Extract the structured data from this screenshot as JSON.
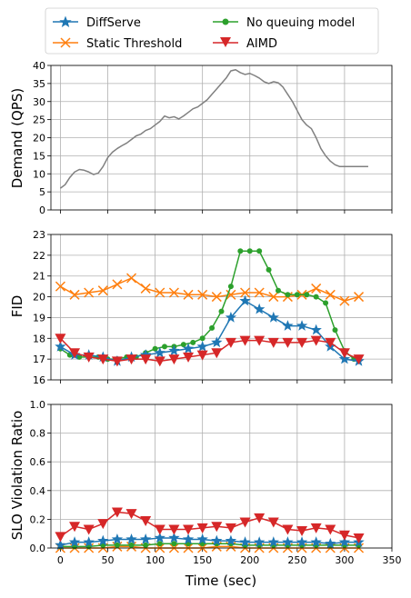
{
  "legend": [
    {
      "name": "DiffServe",
      "color": "#1f77b4",
      "marker": "star"
    },
    {
      "name": "Static Threshold",
      "color": "#ff7f0e",
      "marker": "x"
    },
    {
      "name": "No queuing model",
      "color": "#2ca02c",
      "marker": "circle"
    },
    {
      "name": "AIMD",
      "color": "#d62728",
      "marker": "triangle-down"
    }
  ],
  "chart_data": [
    {
      "type": "line",
      "panel": "demand",
      "title": "",
      "ylabel": "Demand (QPS)",
      "xlabel": "",
      "xlim": [
        -10,
        350
      ],
      "ylim": [
        0,
        40
      ],
      "yticks": [
        0,
        5,
        10,
        15,
        20,
        25,
        30,
        35,
        40
      ],
      "grid": true,
      "series": [
        {
          "color": "#808080",
          "x": [
            0,
            5,
            10,
            15,
            20,
            25,
            30,
            35,
            40,
            45,
            50,
            55,
            60,
            65,
            70,
            75,
            80,
            85,
            90,
            95,
            100,
            105,
            110,
            115,
            120,
            125,
            130,
            135,
            140,
            145,
            150,
            155,
            160,
            165,
            170,
            175,
            180,
            185,
            190,
            195,
            200,
            205,
            210,
            215,
            220,
            225,
            230,
            235,
            240,
            245,
            250,
            255,
            260,
            265,
            270,
            275,
            280,
            285,
            290,
            295,
            300,
            305,
            310,
            315,
            320,
            325
          ],
          "values": [
            6,
            7,
            9,
            10.5,
            11.2,
            11,
            10.5,
            9.8,
            10.2,
            12,
            14.5,
            16,
            17,
            17.8,
            18.5,
            19.5,
            20.5,
            21,
            22,
            22.5,
            23.5,
            24.5,
            26,
            25.5,
            25.8,
            25.2,
            26,
            27,
            28,
            28.5,
            29.5,
            30.5,
            32,
            33.5,
            35,
            36.5,
            38.5,
            38.8,
            38,
            37.5,
            37.8,
            37.2,
            36.5,
            35.5,
            35,
            35.5,
            35.2,
            34,
            32,
            30,
            27.5,
            25,
            23.5,
            22.5,
            20,
            17,
            15,
            13.5,
            12.5,
            12,
            12,
            12,
            12,
            12,
            12,
            12
          ]
        }
      ]
    },
    {
      "type": "line",
      "panel": "fid",
      "title": "",
      "ylabel": "FID",
      "xlabel": "",
      "xlim": [
        -10,
        350
      ],
      "ylim": [
        16,
        23
      ],
      "yticks": [
        16,
        17,
        18,
        19,
        20,
        21,
        22,
        23
      ],
      "grid": true,
      "series": [
        {
          "name": "DiffServe",
          "color": "#1f77b4",
          "marker": "star",
          "x": [
            0,
            15,
            30,
            45,
            60,
            75,
            90,
            105,
            120,
            135,
            150,
            165,
            180,
            195,
            210,
            225,
            240,
            255,
            270,
            285,
            300,
            315
          ],
          "values": [
            17.6,
            17.2,
            17.2,
            17.1,
            16.9,
            17.1,
            17.2,
            17.3,
            17.4,
            17.5,
            17.6,
            17.8,
            19.0,
            19.8,
            19.4,
            19.0,
            18.6,
            18.6,
            18.4,
            17.6,
            17.0,
            16.9
          ]
        },
        {
          "name": "Static Threshold",
          "color": "#ff7f0e",
          "marker": "x",
          "x": [
            0,
            15,
            30,
            45,
            60,
            75,
            90,
            105,
            120,
            135,
            150,
            165,
            180,
            195,
            210,
            225,
            240,
            255,
            270,
            285,
            300,
            315
          ],
          "values": [
            20.5,
            20.1,
            20.2,
            20.3,
            20.6,
            20.9,
            20.4,
            20.2,
            20.2,
            20.1,
            20.1,
            20.0,
            20.1,
            20.2,
            20.2,
            20.0,
            20.0,
            20.1,
            20.4,
            20.1,
            19.8,
            20.0
          ]
        },
        {
          "name": "No queuing model",
          "color": "#2ca02c",
          "marker": "circle",
          "x": [
            0,
            10,
            20,
            30,
            40,
            50,
            60,
            70,
            80,
            90,
            100,
            110,
            120,
            130,
            140,
            150,
            160,
            170,
            180,
            190,
            200,
            210,
            220,
            230,
            240,
            250,
            260,
            270,
            280,
            290,
            300,
            310,
            315
          ],
          "values": [
            17.5,
            17.2,
            17.1,
            17.1,
            17.1,
            17.0,
            17.0,
            17.1,
            17.1,
            17.3,
            17.5,
            17.6,
            17.6,
            17.7,
            17.8,
            18.0,
            18.5,
            19.3,
            20.5,
            22.2,
            22.2,
            22.2,
            21.3,
            20.3,
            20.1,
            20.1,
            20.1,
            20.0,
            19.7,
            18.4,
            17.4,
            17.0,
            17.0
          ]
        },
        {
          "name": "AIMD",
          "color": "#d62728",
          "marker": "triangle-down",
          "x": [
            0,
            15,
            30,
            45,
            60,
            75,
            90,
            105,
            120,
            135,
            150,
            165,
            180,
            195,
            210,
            225,
            240,
            255,
            270,
            285,
            300,
            315
          ],
          "values": [
            18.0,
            17.3,
            17.1,
            17.0,
            16.9,
            17.0,
            17.0,
            16.9,
            17.0,
            17.1,
            17.2,
            17.3,
            17.8,
            17.9,
            17.9,
            17.8,
            17.8,
            17.8,
            17.9,
            17.8,
            17.3,
            17.0
          ]
        }
      ]
    },
    {
      "type": "line",
      "panel": "slo",
      "title": "",
      "ylabel": "SLO Violation Ratio",
      "xlabel": "Time (sec)",
      "xlim": [
        -10,
        350
      ],
      "ylim": [
        0,
        1
      ],
      "yticks": [
        "0.0",
        "0.2",
        "0.4",
        "0.6",
        "0.8",
        "1.0"
      ],
      "xticks": [
        0,
        50,
        100,
        150,
        200,
        250,
        300,
        350
      ],
      "grid": true,
      "series": [
        {
          "name": "DiffServe",
          "color": "#1f77b4",
          "marker": "star",
          "x": [
            0,
            15,
            30,
            45,
            60,
            75,
            90,
            105,
            120,
            135,
            150,
            165,
            180,
            195,
            210,
            225,
            240,
            255,
            270,
            285,
            300,
            315
          ],
          "values": [
            0.02,
            0.04,
            0.04,
            0.05,
            0.06,
            0.06,
            0.06,
            0.07,
            0.07,
            0.06,
            0.06,
            0.05,
            0.05,
            0.04,
            0.04,
            0.04,
            0.04,
            0.04,
            0.04,
            0.03,
            0.04,
            0.04
          ]
        },
        {
          "name": "Static Threshold",
          "color": "#ff7f0e",
          "marker": "x",
          "x": [
            0,
            15,
            30,
            45,
            60,
            75,
            90,
            105,
            120,
            135,
            150,
            165,
            180,
            195,
            210,
            225,
            240,
            255,
            270,
            285,
            300,
            315
          ],
          "values": [
            0.0,
            0.0,
            0.0,
            0.0,
            0.01,
            0.01,
            0.0,
            0.0,
            0.0,
            0.0,
            0.0,
            0.01,
            0.01,
            0.0,
            0.0,
            0.0,
            0.0,
            0.0,
            0.0,
            0.0,
            0.0,
            0.0
          ]
        },
        {
          "name": "No queuing model",
          "color": "#2ca02c",
          "marker": "circle",
          "x": [
            0,
            15,
            30,
            45,
            60,
            75,
            90,
            105,
            120,
            135,
            150,
            165,
            180,
            195,
            210,
            225,
            240,
            255,
            270,
            285,
            300,
            315
          ],
          "values": [
            0.01,
            0.01,
            0.01,
            0.02,
            0.02,
            0.02,
            0.02,
            0.03,
            0.03,
            0.03,
            0.03,
            0.03,
            0.03,
            0.02,
            0.02,
            0.02,
            0.02,
            0.02,
            0.02,
            0.02,
            0.02,
            0.02
          ]
        },
        {
          "name": "AIMD",
          "color": "#d62728",
          "marker": "triangle-down",
          "x": [
            0,
            15,
            30,
            45,
            60,
            75,
            90,
            105,
            120,
            135,
            150,
            165,
            180,
            195,
            210,
            225,
            240,
            255,
            270,
            285,
            300,
            315
          ],
          "values": [
            0.08,
            0.15,
            0.13,
            0.17,
            0.25,
            0.24,
            0.19,
            0.13,
            0.13,
            0.13,
            0.14,
            0.15,
            0.14,
            0.18,
            0.21,
            0.18,
            0.13,
            0.12,
            0.14,
            0.13,
            0.09,
            0.07
          ]
        }
      ]
    }
  ]
}
